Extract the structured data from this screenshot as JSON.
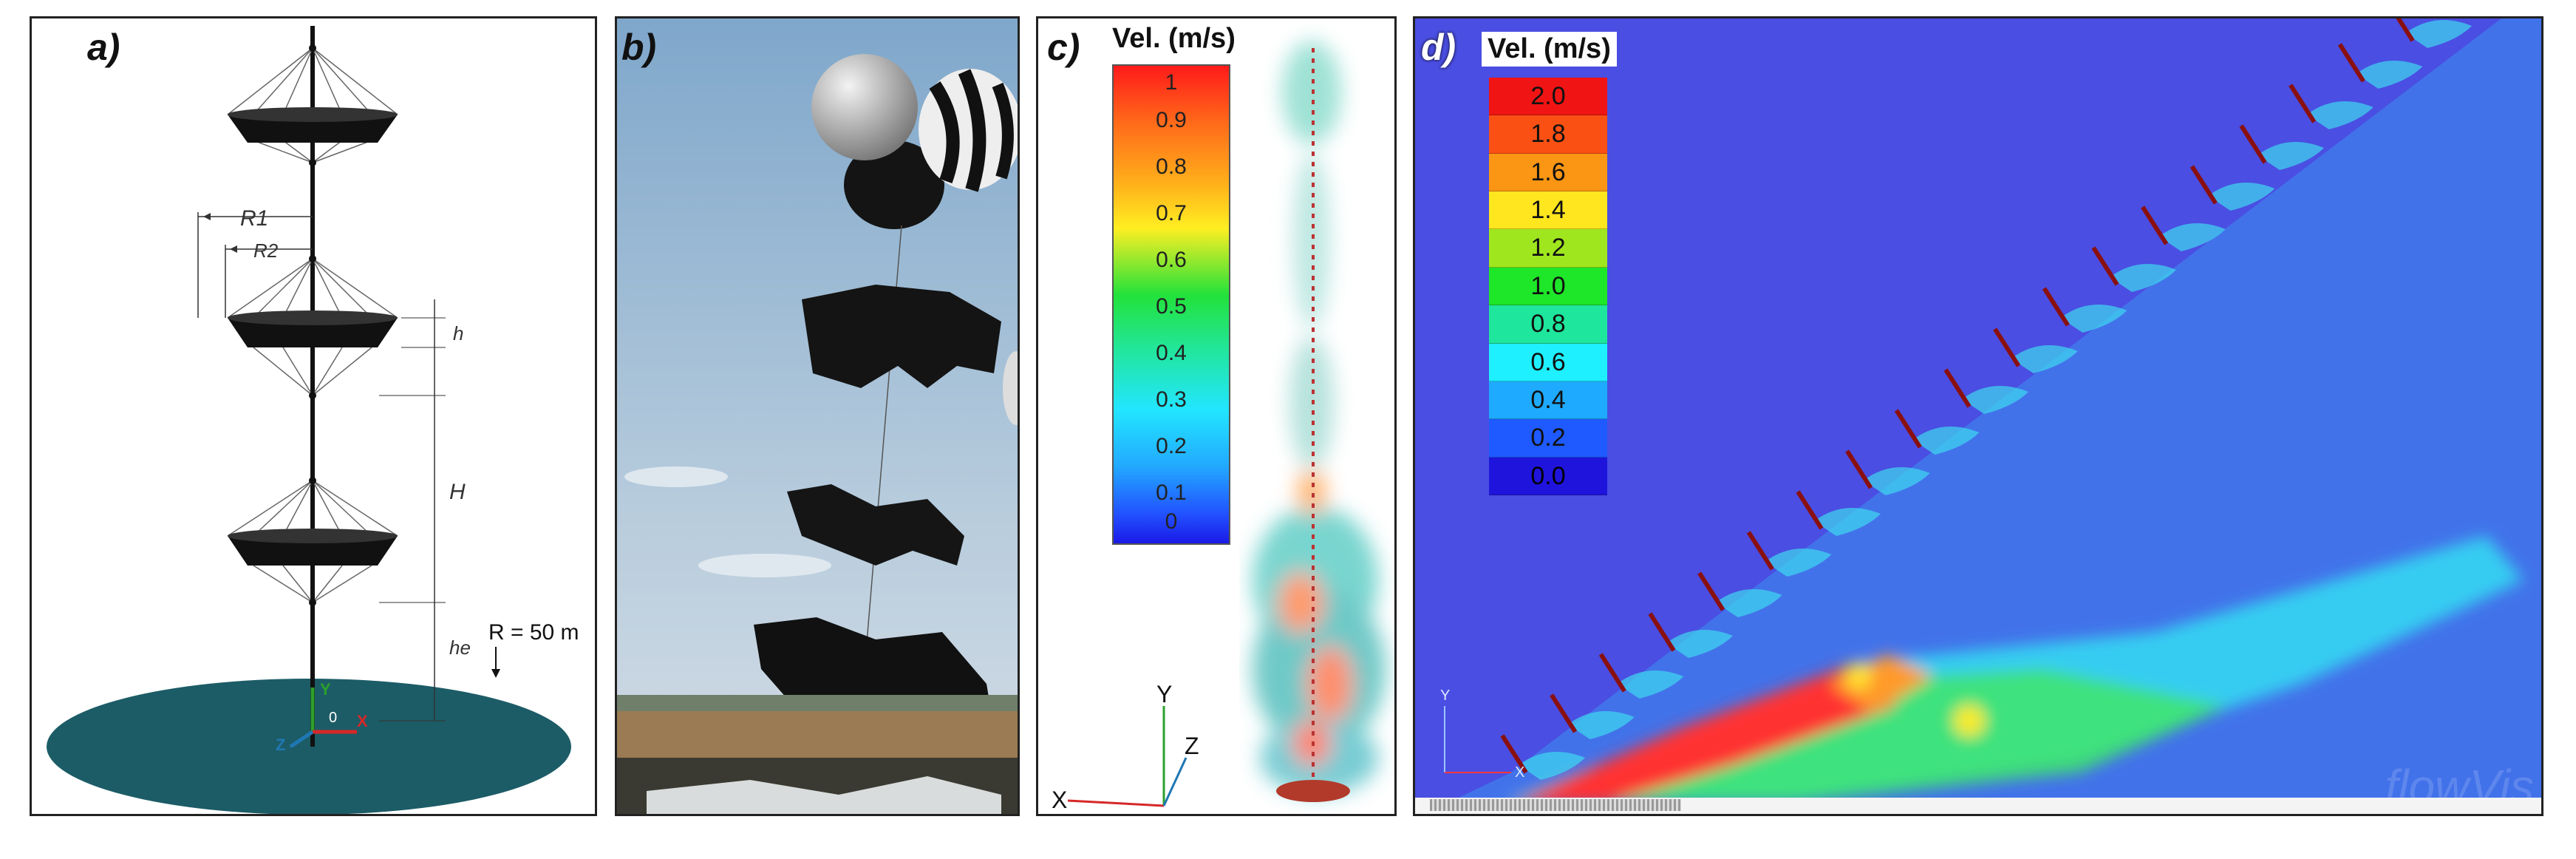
{
  "panels": {
    "a": {
      "label": "a)",
      "R1": "R1",
      "R2": "R2",
      "h": "h",
      "H": "H",
      "he": "he",
      "R": "R = 50 m",
      "axis_y": "Y",
      "axis_x": "X",
      "axis_z": "Z",
      "origin": "0"
    },
    "b": {
      "label": "b)"
    },
    "c": {
      "label": "c)",
      "legend_title": "Vel. (m/s)",
      "legend_values": [
        "1",
        "0.9",
        "0.8",
        "0.7",
        "0.6",
        "0.5",
        "0.4",
        "0.3",
        "0.2",
        "0.1",
        "0"
      ],
      "axis_y": "Y",
      "axis_z": "Z",
      "axis_x": "X"
    },
    "d": {
      "label": "d)",
      "legend_title": "Vel. (m/s)",
      "legend_values": [
        "2.0",
        "1.8",
        "1.6",
        "1.4",
        "1.2",
        "1.0",
        "0.8",
        "0.6",
        "0.4",
        "0.2",
        "0.0"
      ],
      "legend_colors": [
        "#f01414",
        "#fa5014",
        "#fa9614",
        "#ffe61e",
        "#a0e61e",
        "#1ee628",
        "#1ee69c",
        "#1ef0ff",
        "#1eaaff",
        "#1e5aff",
        "#1e14dc"
      ],
      "axis_y": "Y",
      "axis_x": "X",
      "watermark": "flowVis"
    }
  }
}
